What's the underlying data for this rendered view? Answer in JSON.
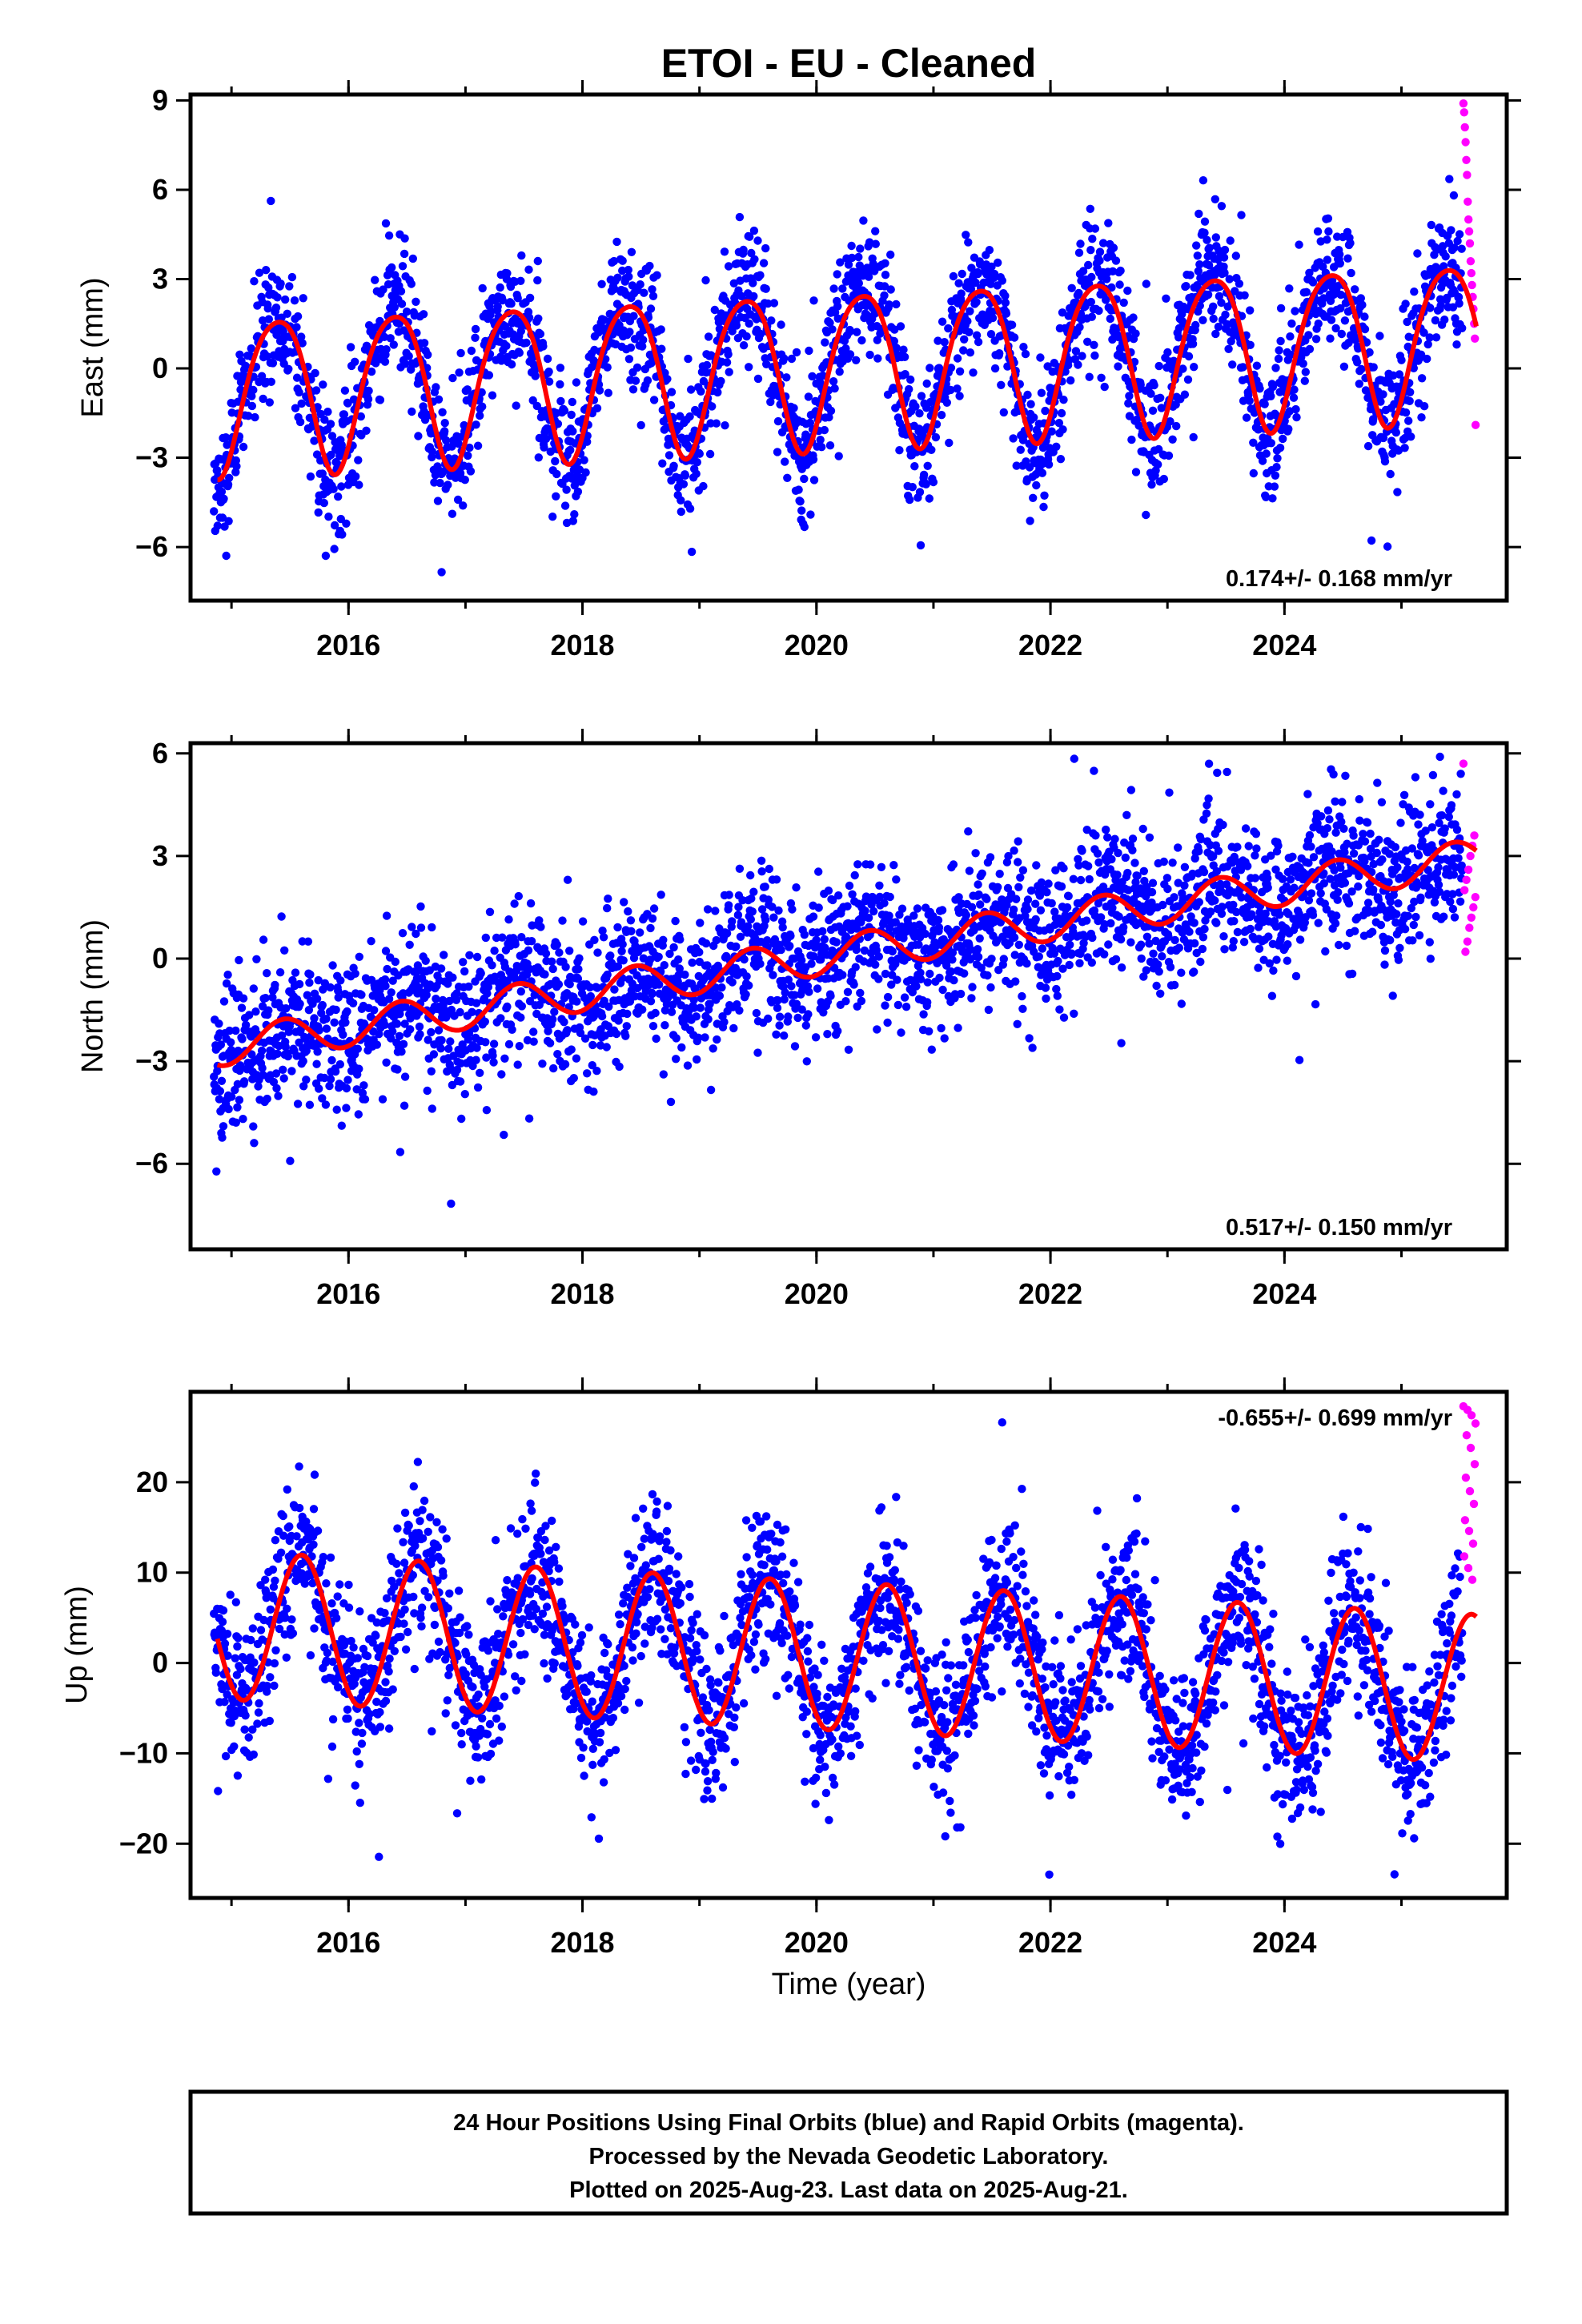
{
  "chart_data": {
    "type": "scatter",
    "title": "ETOI  - EU - Cleaned",
    "xlabel": "Time (year)",
    "xlim": [
      2014.65,
      2025.9
    ],
    "x_ticks": [
      "2016",
      "2018",
      "2020",
      "2022",
      "2024"
    ],
    "grid": false,
    "series_colors": {
      "final": "#0000ff",
      "rapid": "#ff00ff",
      "model": "#ff0000"
    },
    "panels": [
      {
        "ylabel": "East (mm)",
        "ylim": [
          -7.8,
          9.2
        ],
        "y_ticks": [
          "9",
          "6",
          "3",
          "0",
          "−3",
          "−6"
        ],
        "y_tick_values": [
          9,
          6,
          3,
          0,
          -3,
          -6
        ],
        "rate_label": "0.174+/- 0.168 mm/yr",
        "model": {
          "t0": 2014.9,
          "offset": -0.8,
          "rate": 0.174,
          "amplitude": 2.6,
          "amp_slope": 0.0,
          "phase_year": 2015.14,
          "semi_amplitude": 0.35,
          "semi_phase": 2015.0
        },
        "noise_sd": 1.1,
        "rapid_y": [
          8.9,
          8.6,
          8.1,
          7.6,
          7.0,
          6.5,
          5.6,
          5.0,
          4.6,
          4.2,
          3.6,
          3.2,
          2.8,
          2.4,
          2.0,
          1.5,
          1.0,
          -1.9
        ]
      },
      {
        "ylabel": "North (mm)",
        "ylim": [
          -8.5,
          6.3
        ],
        "y_ticks": [
          "6",
          "3",
          "0",
          "−3",
          "−6"
        ],
        "y_tick_values": [
          6,
          3,
          0,
          -3,
          -6
        ],
        "rate_label": "0.517+/- 0.150 mm/yr",
        "model": {
          "t0": 2014.9,
          "offset": -2.6,
          "rate": 0.517,
          "amplitude": 0.55,
          "amp_slope": 0.0,
          "phase_year": 2015.2,
          "semi_amplitude": 0.0,
          "semi_phase": 2015.0
        },
        "noise_sd": 1.05,
        "rapid_y": [
          5.7,
          3.6,
          3.3,
          3.0,
          2.6,
          2.3,
          2.0,
          1.8,
          1.5,
          1.2,
          0.9,
          0.5,
          0.2
        ]
      },
      {
        "ylabel": "Up (mm)",
        "ylim": [
          -26,
          30
        ],
        "y_ticks": [
          "20",
          "10",
          "0",
          "−10",
          "−20"
        ],
        "y_tick_values": [
          20,
          10,
          0,
          -10,
          -20
        ],
        "rate_label": "-0.655+/- 0.699 mm/yr",
        "model": {
          "t0": 2014.9,
          "offset": 4.2,
          "rate": -0.655,
          "amplitude": 8.2,
          "amp_slope": 0.0,
          "phase_year": 2015.35,
          "semi_amplitude": 0.0,
          "semi_phase": 2015.0
        },
        "noise_sd": 4.2,
        "rapid_y": [
          28.4,
          28.0,
          27.4,
          26.5,
          25.2,
          23.8,
          22.0,
          20.5,
          19.0,
          17.6,
          15.8,
          14.6,
          13.2,
          11.8,
          10.5,
          9.2
        ]
      }
    ],
    "final_data_range": [
      2014.85,
      2025.52
    ],
    "final_sample_step": 0.0035,
    "rapid_x_range": [
      2025.53,
      2025.64
    ]
  },
  "caption": {
    "line1": "24 Hour Positions Using Final Orbits (blue) and Rapid Orbits (magenta).",
    "line2": "Processed by the Nevada Geodetic Laboratory.",
    "line3": "Plotted on 2025-Aug-23. Last data on 2025-Aug-21."
  }
}
